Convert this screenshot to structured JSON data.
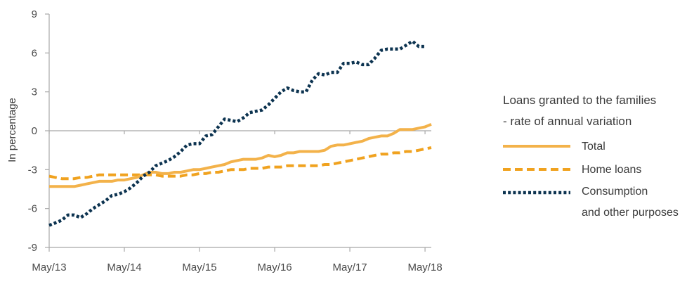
{
  "chart_data": {
    "type": "line",
    "title": "",
    "ylabel": "In percentage",
    "xlabel": "",
    "ylim": [
      -9,
      9
    ],
    "yticks": [
      9,
      6,
      3,
      0,
      -3,
      -6,
      -9
    ],
    "ytick_labels": [
      "9",
      "6",
      "3",
      "0",
      "-3",
      "-6",
      "-9"
    ],
    "xlim": [
      0,
      61
    ],
    "xticks": [
      0,
      12,
      24,
      36,
      48,
      60
    ],
    "xtick_labels": [
      "May/13",
      "May/14",
      "May/15",
      "May/16",
      "May/17",
      "May/18"
    ],
    "grid": false,
    "legend_position": "right",
    "legend_title_lines": [
      "Loans granted to the families",
      "- rate of annual variation"
    ],
    "series": [
      {
        "name": "Total",
        "style": "solid",
        "color": "#f3b24a",
        "x": [
          0,
          1,
          2,
          3,
          4,
          5,
          6,
          7,
          8,
          9,
          10,
          11,
          12,
          13,
          14,
          15,
          16,
          17,
          18,
          19,
          20,
          21,
          22,
          23,
          24,
          25,
          26,
          27,
          28,
          29,
          30,
          31,
          32,
          33,
          34,
          35,
          36,
          37,
          38,
          39,
          40,
          41,
          42,
          43,
          44,
          45,
          46,
          47,
          48,
          49,
          50,
          51,
          52,
          53,
          54,
          55,
          56,
          57,
          58,
          59,
          60,
          61
        ],
        "values": [
          -4.3,
          -4.3,
          -4.3,
          -4.3,
          -4.3,
          -4.2,
          -4.1,
          -4.0,
          -3.9,
          -3.9,
          -3.9,
          -3.8,
          -3.8,
          -3.7,
          -3.6,
          -3.4,
          -3.2,
          -3.2,
          -3.3,
          -3.3,
          -3.2,
          -3.2,
          -3.1,
          -3.0,
          -3.0,
          -2.9,
          -2.8,
          -2.7,
          -2.6,
          -2.4,
          -2.3,
          -2.2,
          -2.2,
          -2.2,
          -2.1,
          -1.9,
          -2.0,
          -1.9,
          -1.7,
          -1.7,
          -1.6,
          -1.6,
          -1.6,
          -1.6,
          -1.5,
          -1.2,
          -1.1,
          -1.1,
          -1.0,
          -0.9,
          -0.8,
          -0.6,
          -0.5,
          -0.4,
          -0.4,
          -0.2,
          0.1,
          0.1,
          0.1,
          0.2,
          0.3,
          0.5
        ]
      },
      {
        "name": "Home loans",
        "style": "dashed",
        "color": "#f0a21f",
        "x": [
          0,
          1,
          2,
          3,
          4,
          5,
          6,
          7,
          8,
          9,
          10,
          11,
          12,
          13,
          14,
          15,
          16,
          17,
          18,
          19,
          20,
          21,
          22,
          23,
          24,
          25,
          26,
          27,
          28,
          29,
          30,
          31,
          32,
          33,
          34,
          35,
          36,
          37,
          38,
          39,
          40,
          41,
          42,
          43,
          44,
          45,
          46,
          47,
          48,
          49,
          50,
          51,
          52,
          53,
          54,
          55,
          56,
          57,
          58,
          59,
          60,
          61
        ],
        "values": [
          -3.5,
          -3.6,
          -3.7,
          -3.7,
          -3.7,
          -3.6,
          -3.6,
          -3.5,
          -3.4,
          -3.4,
          -3.4,
          -3.4,
          -3.4,
          -3.4,
          -3.4,
          -3.4,
          -3.4,
          -3.4,
          -3.5,
          -3.5,
          -3.5,
          -3.5,
          -3.4,
          -3.4,
          -3.3,
          -3.3,
          -3.2,
          -3.2,
          -3.1,
          -3.0,
          -3.0,
          -3.0,
          -2.9,
          -2.9,
          -2.9,
          -2.8,
          -2.8,
          -2.8,
          -2.7,
          -2.7,
          -2.7,
          -2.7,
          -2.7,
          -2.7,
          -2.6,
          -2.6,
          -2.5,
          -2.4,
          -2.3,
          -2.2,
          -2.1,
          -2.0,
          -1.9,
          -1.8,
          -1.8,
          -1.7,
          -1.7,
          -1.6,
          -1.6,
          -1.5,
          -1.4,
          -1.3
        ]
      },
      {
        "name": "Consumption\nand other purposes",
        "style": "dotted",
        "color": "#0c3350",
        "x": [
          0,
          1,
          2,
          3,
          4,
          5,
          6,
          7,
          8,
          9,
          10,
          11,
          12,
          13,
          14,
          15,
          16,
          17,
          18,
          19,
          20,
          21,
          22,
          23,
          24,
          25,
          26,
          27,
          28,
          29,
          30,
          31,
          32,
          33,
          34,
          35,
          36,
          37,
          38,
          39,
          40,
          41,
          42,
          43,
          44,
          45,
          46,
          47,
          48,
          49,
          50,
          51,
          52,
          53,
          54,
          55,
          56,
          57,
          58,
          59,
          60
        ],
        "values": [
          -7.3,
          -7.1,
          -6.9,
          -6.5,
          -6.5,
          -6.7,
          -6.4,
          -6.0,
          -5.7,
          -5.4,
          -5.0,
          -4.9,
          -4.7,
          -4.4,
          -4.0,
          -3.5,
          -3.2,
          -2.7,
          -2.5,
          -2.3,
          -2.0,
          -1.6,
          -1.1,
          -1.0,
          -1.0,
          -0.4,
          -0.3,
          0.3,
          0.9,
          0.8,
          0.7,
          1.0,
          1.4,
          1.5,
          1.6,
          2.0,
          2.5,
          3.0,
          3.3,
          3.1,
          3.0,
          3.0,
          3.9,
          4.4,
          4.3,
          4.5,
          4.5,
          5.2,
          5.2,
          5.3,
          5.1,
          5.1,
          5.6,
          6.2,
          6.3,
          6.3,
          6.3,
          6.6,
          6.9,
          6.5,
          6.5
        ]
      }
    ]
  }
}
